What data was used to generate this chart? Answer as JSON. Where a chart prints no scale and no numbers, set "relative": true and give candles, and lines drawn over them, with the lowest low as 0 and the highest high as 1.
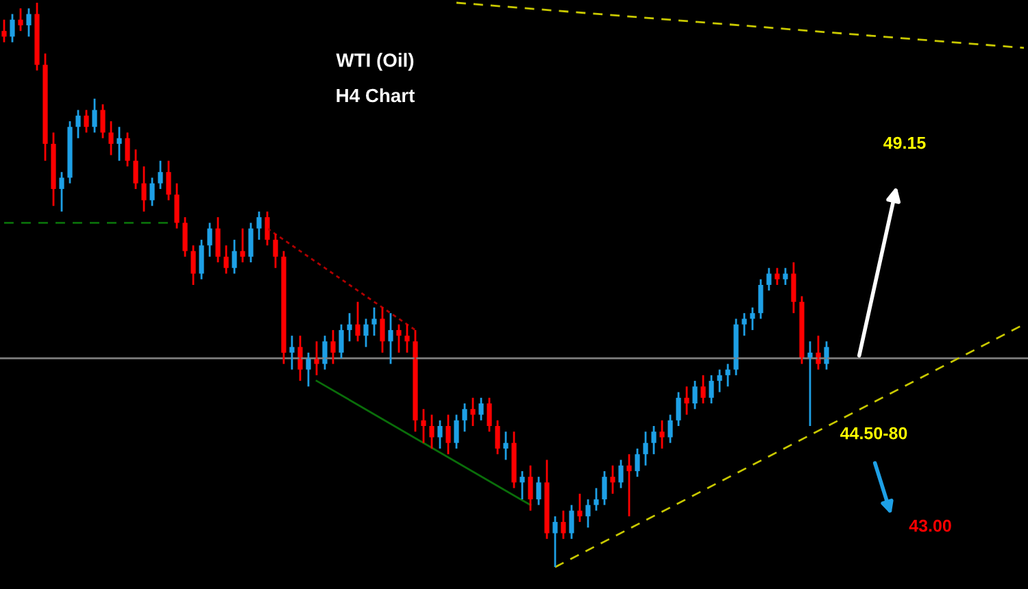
{
  "chart_data": {
    "type": "candlestick",
    "title": "WTI (Oil)",
    "subtitle": "H4 Chart",
    "relative": true,
    "grid": false,
    "legend": false,
    "categories": [
      null,
      null,
      null,
      null,
      null,
      null,
      null,
      null,
      null,
      null,
      null,
      null,
      null,
      null,
      null,
      null,
      null,
      null,
      null,
      null,
      null,
      null,
      null,
      null,
      null,
      null,
      null,
      null,
      null,
      null,
      null,
      null,
      null,
      null,
      null,
      null,
      null,
      null,
      null,
      null,
      null,
      null,
      null,
      null,
      null,
      null,
      null,
      null,
      null,
      null,
      null,
      null,
      null,
      null,
      null,
      null,
      null,
      null,
      null,
      null,
      null,
      null,
      null,
      null,
      null,
      null,
      null,
      null,
      null,
      null,
      null,
      null,
      null,
      null,
      null,
      null,
      null,
      null,
      null,
      null,
      null,
      null,
      null,
      null,
      null,
      null,
      null,
      null,
      null,
      null,
      null,
      null,
      null,
      null,
      null,
      null,
      null,
      null,
      null,
      null,
      null,
      null,
      null,
      null,
      null,
      null,
      null,
      null,
      null,
      null,
      null,
      null,
      null,
      null,
      null,
      null,
      null,
      null,
      null,
      null,
      null,
      null,
      null,
      null,
      null
    ],
    "ohlc": [
      [
        0.95,
        0.97,
        0.93,
        0.94
      ],
      [
        0.94,
        0.98,
        0.93,
        0.97
      ],
      [
        0.97,
        0.99,
        0.95,
        0.96
      ],
      [
        0.96,
        0.99,
        0.94,
        0.98
      ],
      [
        0.98,
        1.0,
        0.88,
        0.89
      ],
      [
        0.89,
        0.91,
        0.72,
        0.75
      ],
      [
        0.75,
        0.77,
        0.64,
        0.67
      ],
      [
        0.67,
        0.7,
        0.63,
        0.69
      ],
      [
        0.69,
        0.79,
        0.68,
        0.78
      ],
      [
        0.78,
        0.81,
        0.76,
        0.8
      ],
      [
        0.8,
        0.81,
        0.77,
        0.78
      ],
      [
        0.78,
        0.83,
        0.77,
        0.81
      ],
      [
        0.81,
        0.82,
        0.76,
        0.77
      ],
      [
        0.77,
        0.79,
        0.73,
        0.75
      ],
      [
        0.75,
        0.78,
        0.72,
        0.76
      ],
      [
        0.76,
        0.77,
        0.71,
        0.72
      ],
      [
        0.72,
        0.74,
        0.67,
        0.68
      ],
      [
        0.68,
        0.71,
        0.63,
        0.65
      ],
      [
        0.65,
        0.69,
        0.64,
        0.68
      ],
      [
        0.68,
        0.72,
        0.67,
        0.7
      ],
      [
        0.7,
        0.72,
        0.65,
        0.66
      ],
      [
        0.66,
        0.68,
        0.6,
        0.61
      ],
      [
        0.61,
        0.62,
        0.55,
        0.56
      ],
      [
        0.56,
        0.57,
        0.5,
        0.52
      ],
      [
        0.52,
        0.58,
        0.51,
        0.57
      ],
      [
        0.57,
        0.61,
        0.55,
        0.6
      ],
      [
        0.6,
        0.62,
        0.54,
        0.55
      ],
      [
        0.55,
        0.57,
        0.52,
        0.53
      ],
      [
        0.53,
        0.58,
        0.52,
        0.56
      ],
      [
        0.56,
        0.6,
        0.54,
        0.55
      ],
      [
        0.55,
        0.61,
        0.54,
        0.6
      ],
      [
        0.6,
        0.63,
        0.58,
        0.62
      ],
      [
        0.62,
        0.63,
        0.57,
        0.58
      ],
      [
        0.58,
        0.59,
        0.53,
        0.55
      ],
      [
        0.55,
        0.56,
        0.36,
        0.38
      ],
      [
        0.38,
        0.41,
        0.35,
        0.39
      ],
      [
        0.39,
        0.41,
        0.33,
        0.35
      ],
      [
        0.35,
        0.38,
        0.32,
        0.37
      ],
      [
        0.37,
        0.4,
        0.34,
        0.36
      ],
      [
        0.36,
        0.41,
        0.35,
        0.4
      ],
      [
        0.4,
        0.42,
        0.36,
        0.38
      ],
      [
        0.38,
        0.43,
        0.37,
        0.42
      ],
      [
        0.42,
        0.45,
        0.4,
        0.43
      ],
      [
        0.43,
        0.47,
        0.4,
        0.41
      ],
      [
        0.41,
        0.44,
        0.39,
        0.43
      ],
      [
        0.43,
        0.46,
        0.41,
        0.44
      ],
      [
        0.44,
        0.46,
        0.38,
        0.4
      ],
      [
        0.4,
        0.45,
        0.36,
        0.42
      ],
      [
        0.42,
        0.43,
        0.38,
        0.41
      ],
      [
        0.41,
        0.43,
        0.38,
        0.4
      ],
      [
        0.4,
        0.42,
        0.24,
        0.26
      ],
      [
        0.26,
        0.28,
        0.22,
        0.25
      ],
      [
        0.25,
        0.27,
        0.21,
        0.23
      ],
      [
        0.23,
        0.26,
        0.21,
        0.25
      ],
      [
        0.25,
        0.27,
        0.2,
        0.22
      ],
      [
        0.22,
        0.27,
        0.21,
        0.26
      ],
      [
        0.26,
        0.29,
        0.24,
        0.28
      ],
      [
        0.28,
        0.3,
        0.25,
        0.27
      ],
      [
        0.27,
        0.3,
        0.26,
        0.29
      ],
      [
        0.29,
        0.3,
        0.24,
        0.25
      ],
      [
        0.25,
        0.26,
        0.2,
        0.21
      ],
      [
        0.21,
        0.24,
        0.19,
        0.22
      ],
      [
        0.22,
        0.24,
        0.14,
        0.15
      ],
      [
        0.15,
        0.17,
        0.12,
        0.16
      ],
      [
        0.16,
        0.18,
        0.1,
        0.12
      ],
      [
        0.12,
        0.16,
        0.11,
        0.15
      ],
      [
        0.15,
        0.19,
        0.05,
        0.06
      ],
      [
        0.06,
        0.09,
        0.0,
        0.08
      ],
      [
        0.08,
        0.1,
        0.05,
        0.06
      ],
      [
        0.06,
        0.11,
        0.05,
        0.1
      ],
      [
        0.1,
        0.13,
        0.08,
        0.09
      ],
      [
        0.09,
        0.12,
        0.07,
        0.11
      ],
      [
        0.11,
        0.14,
        0.1,
        0.12
      ],
      [
        0.12,
        0.17,
        0.11,
        0.16
      ],
      [
        0.16,
        0.18,
        0.13,
        0.15
      ],
      [
        0.15,
        0.19,
        0.14,
        0.18
      ],
      [
        0.18,
        0.2,
        0.09,
        0.17
      ],
      [
        0.17,
        0.21,
        0.16,
        0.2
      ],
      [
        0.2,
        0.24,
        0.18,
        0.22
      ],
      [
        0.22,
        0.25,
        0.2,
        0.24
      ],
      [
        0.24,
        0.26,
        0.21,
        0.23
      ],
      [
        0.23,
        0.27,
        0.22,
        0.26
      ],
      [
        0.26,
        0.31,
        0.25,
        0.3
      ],
      [
        0.3,
        0.32,
        0.27,
        0.29
      ],
      [
        0.29,
        0.33,
        0.28,
        0.32
      ],
      [
        0.32,
        0.34,
        0.29,
        0.3
      ],
      [
        0.3,
        0.34,
        0.29,
        0.33
      ],
      [
        0.33,
        0.35,
        0.31,
        0.34
      ],
      [
        0.34,
        0.36,
        0.32,
        0.35
      ],
      [
        0.35,
        0.44,
        0.34,
        0.43
      ],
      [
        0.43,
        0.45,
        0.41,
        0.44
      ],
      [
        0.44,
        0.46,
        0.42,
        0.45
      ],
      [
        0.45,
        0.51,
        0.44,
        0.5
      ],
      [
        0.5,
        0.53,
        0.49,
        0.52
      ],
      [
        0.52,
        0.53,
        0.5,
        0.51
      ],
      [
        0.51,
        0.53,
        0.5,
        0.52
      ],
      [
        0.52,
        0.54,
        0.45,
        0.47
      ],
      [
        0.47,
        0.48,
        0.36,
        0.37
      ],
      [
        0.37,
        0.4,
        0.25,
        0.38
      ],
      [
        0.38,
        0.41,
        0.35,
        0.36
      ],
      [
        0.36,
        0.4,
        0.35,
        0.39
      ],
      null,
      null,
      null,
      null,
      null,
      null,
      null,
      null,
      null,
      null,
      null,
      null,
      null,
      null,
      null,
      null,
      null,
      null,
      null,
      null,
      null,
      null,
      null,
      null
    ],
    "colors": [
      "#ff0000",
      "#1ea0e6",
      "#ff0000",
      "#1ea0e6",
      "#ff0000",
      "#ff0000",
      "#ff0000",
      "#1ea0e6",
      "#1ea0e6",
      "#1ea0e6",
      "#ff0000",
      "#1ea0e6",
      "#ff0000",
      "#ff0000",
      "#1ea0e6",
      "#ff0000",
      "#ff0000",
      "#ff0000",
      "#1ea0e6",
      "#1ea0e6",
      "#ff0000",
      "#ff0000",
      "#ff0000",
      "#ff0000",
      "#1ea0e6",
      "#1ea0e6",
      "#ff0000",
      "#ff0000",
      "#1ea0e6",
      "#ff0000",
      "#1ea0e6",
      "#1ea0e6",
      "#ff0000",
      "#ff0000",
      "#ff0000",
      "#1ea0e6",
      "#ff0000",
      "#1ea0e6",
      "#ff0000",
      "#1ea0e6",
      "#ff0000",
      "#1ea0e6",
      "#1ea0e6",
      "#ff0000",
      "#1ea0e6",
      "#1ea0e6",
      "#ff0000",
      "#1ea0e6",
      "#ff0000",
      "#ff0000",
      "#ff0000",
      "#ff0000",
      "#ff0000",
      "#1ea0e6",
      "#ff0000",
      "#1ea0e6",
      "#1ea0e6",
      "#ff0000",
      "#1ea0e6",
      "#ff0000",
      "#ff0000",
      "#1ea0e6",
      "#ff0000",
      "#1ea0e6",
      "#ff0000",
      "#1ea0e6",
      "#ff0000",
      "#1ea0e6",
      "#ff0000",
      "#1ea0e6",
      "#ff0000",
      "#1ea0e6",
      "#1ea0e6",
      "#1ea0e6",
      "#ff0000",
      "#1ea0e6",
      "#ff0000",
      "#1ea0e6",
      "#1ea0e6",
      "#1ea0e6",
      "#ff0000",
      "#1ea0e6",
      "#1ea0e6",
      "#ff0000",
      "#1ea0e6",
      "#ff0000",
      "#1ea0e6",
      "#1ea0e6",
      "#1ea0e6",
      "#1ea0e6",
      "#1ea0e6",
      "#1ea0e6",
      "#1ea0e6",
      "#1ea0e6",
      "#ff0000",
      "#1ea0e6",
      "#ff0000",
      "#ff0000",
      "#1ea0e6",
      "#ff0000",
      "#1ea0e6",
      null,
      null,
      null,
      null,
      null,
      null,
      null,
      null,
      null,
      null,
      null,
      null,
      null,
      null,
      null,
      null,
      null,
      null,
      null,
      null,
      null,
      null,
      null,
      null
    ],
    "series": [
      {
        "type": "line",
        "color": "#c8c800",
        "line_style": "dashed",
        "values": [
          null,
          null,
          null,
          null,
          null,
          null,
          null,
          null,
          null,
          null,
          null,
          null,
          null,
          null,
          null,
          null,
          null,
          null,
          null,
          null,
          null,
          null,
          null,
          null,
          null,
          null,
          null,
          null,
          null,
          null,
          null,
          null,
          null,
          null,
          null,
          null,
          null,
          null,
          null,
          null,
          null,
          null,
          null,
          null,
          null,
          null,
          null,
          null,
          null,
          null,
          null,
          null,
          null,
          null,
          null,
          null,
          null,
          null,
          null,
          null,
          null,
          null,
          null,
          null,
          null,
          null,
          null,
          0.0,
          null,
          null,
          null,
          null,
          null,
          null,
          null,
          null,
          null,
          null,
          null,
          null,
          null,
          null,
          null,
          null,
          null,
          null,
          null,
          null,
          null,
          null,
          null,
          null,
          null,
          null,
          null,
          null,
          null,
          null,
          null,
          null,
          null,
          null,
          null,
          null,
          null,
          null,
          null,
          null,
          null,
          null,
          null,
          null,
          null,
          null,
          null,
          null,
          null,
          null,
          null,
          null,
          null,
          null,
          null,
          null,
          0.43
        ]
      },
      {
        "type": "line",
        "color": "#c8c800",
        "line_style": "dashed",
        "values": [
          null,
          null,
          null,
          null,
          null,
          null,
          null,
          null,
          null,
          null,
          null,
          null,
          null,
          null,
          null,
          null,
          null,
          null,
          null,
          null,
          null,
          null,
          null,
          null,
          null,
          null,
          null,
          null,
          null,
          null,
          null,
          null,
          null,
          null,
          null,
          null,
          null,
          null,
          null,
          null,
          null,
          null,
          null,
          null,
          null,
          null,
          null,
          null,
          null,
          null,
          null,
          null,
          null,
          null,
          null,
          1.0,
          null,
          null,
          null,
          null,
          null,
          null,
          null,
          null,
          null,
          null,
          null,
          null,
          null,
          null,
          null,
          null,
          null,
          null,
          null,
          null,
          null,
          null,
          null,
          null,
          null,
          null,
          null,
          null,
          null,
          null,
          null,
          null,
          null,
          null,
          null,
          null,
          null,
          null,
          null,
          null,
          null,
          null,
          null,
          null,
          null,
          null,
          null,
          null,
          null,
          null,
          null,
          null,
          null,
          null,
          null,
          null,
          null,
          null,
          null,
          null,
          null,
          null,
          null,
          null,
          null,
          null,
          null,
          null,
          0.92
        ]
      },
      {
        "type": "line",
        "color": "#b00000",
        "line_style": "dotted",
        "values": [
          null,
          null,
          null,
          null,
          null,
          null,
          null,
          null,
          null,
          null,
          null,
          null,
          null,
          null,
          null,
          null,
          null,
          null,
          null,
          null,
          null,
          null,
          null,
          null,
          null,
          null,
          null,
          null,
          null,
          null,
          null,
          null,
          0.6,
          null,
          null,
          null,
          null,
          null,
          null,
          null,
          null,
          null,
          null,
          null,
          null,
          null,
          null,
          null,
          null,
          null,
          0.42,
          null,
          null,
          null,
          null,
          null,
          null,
          null,
          null,
          null,
          null,
          null,
          null,
          null,
          null,
          null,
          null,
          null,
          null,
          null,
          null,
          null,
          null,
          null,
          null,
          null,
          null,
          null,
          null,
          null,
          null,
          null,
          null,
          null,
          null,
          null,
          null,
          null,
          null,
          null,
          null,
          null,
          null,
          null,
          null,
          null,
          null,
          null,
          null,
          null,
          null,
          null,
          null,
          null,
          null,
          null,
          null,
          null,
          null,
          null,
          null,
          null,
          null,
          null,
          null,
          null,
          null,
          null,
          null,
          null,
          null,
          null,
          null,
          null,
          null
        ]
      },
      {
        "type": "line",
        "color": "#0a6e0a",
        "line_style": "solid",
        "values": [
          null,
          null,
          null,
          null,
          null,
          null,
          null,
          null,
          null,
          null,
          null,
          null,
          null,
          null,
          null,
          null,
          null,
          null,
          null,
          null,
          null,
          null,
          null,
          null,
          null,
          null,
          null,
          null,
          null,
          null,
          null,
          null,
          null,
          null,
          null,
          null,
          null,
          null,
          0.33,
          null,
          null,
          null,
          null,
          null,
          null,
          null,
          null,
          null,
          null,
          null,
          null,
          null,
          null,
          null,
          null,
          null,
          null,
          null,
          null,
          null,
          null,
          null,
          null,
          null,
          0.11,
          null,
          null,
          null,
          null,
          null,
          null,
          null,
          null,
          null,
          null,
          null,
          null,
          null,
          null,
          null,
          null,
          null,
          null,
          null,
          null,
          null,
          null,
          null,
          null,
          null,
          null,
          null,
          null,
          null,
          null,
          null,
          null,
          null,
          null,
          null,
          null,
          null,
          null,
          null,
          null,
          null,
          null,
          null,
          null,
          null,
          null,
          null,
          null,
          null,
          null,
          null,
          null,
          null,
          null,
          null,
          null,
          null,
          null,
          null,
          null
        ]
      },
      {
        "type": "line",
        "color": "#0a6e0a",
        "line_style": "dashed",
        "values": [
          0.61,
          null,
          null,
          null,
          null,
          null,
          null,
          null,
          null,
          null,
          null,
          null,
          null,
          null,
          null,
          null,
          null,
          null,
          null,
          null,
          0.61,
          null,
          null,
          null,
          null,
          null,
          null,
          null,
          null,
          null,
          null,
          null,
          null,
          null,
          null,
          null,
          null,
          null,
          null,
          null,
          null,
          null,
          null,
          null,
          null,
          null,
          null,
          null,
          null,
          null,
          null,
          null,
          null,
          null,
          null,
          null,
          null,
          null,
          null,
          null,
          null,
          null,
          null,
          null,
          null,
          null,
          null,
          null,
          null,
          null,
          null,
          null,
          null,
          null,
          null,
          null,
          null,
          null,
          null,
          null,
          null,
          null,
          null,
          null,
          null,
          null,
          null,
          null,
          null,
          null,
          null,
          null,
          null,
          null,
          null,
          null,
          null,
          null,
          null,
          null,
          null,
          null,
          null,
          null,
          null,
          null,
          null,
          null,
          null,
          null,
          null,
          null,
          null,
          null,
          null,
          null,
          null,
          null,
          null,
          null,
          null,
          null,
          null,
          null,
          null
        ]
      }
    ],
    "ref_lines": [
      {
        "axis": "y",
        "value": 0.37,
        "color": "#808080",
        "line_style": "solid"
      }
    ],
    "annotations": [
      "49.15",
      "44.50-80",
      "43.00"
    ]
  }
}
